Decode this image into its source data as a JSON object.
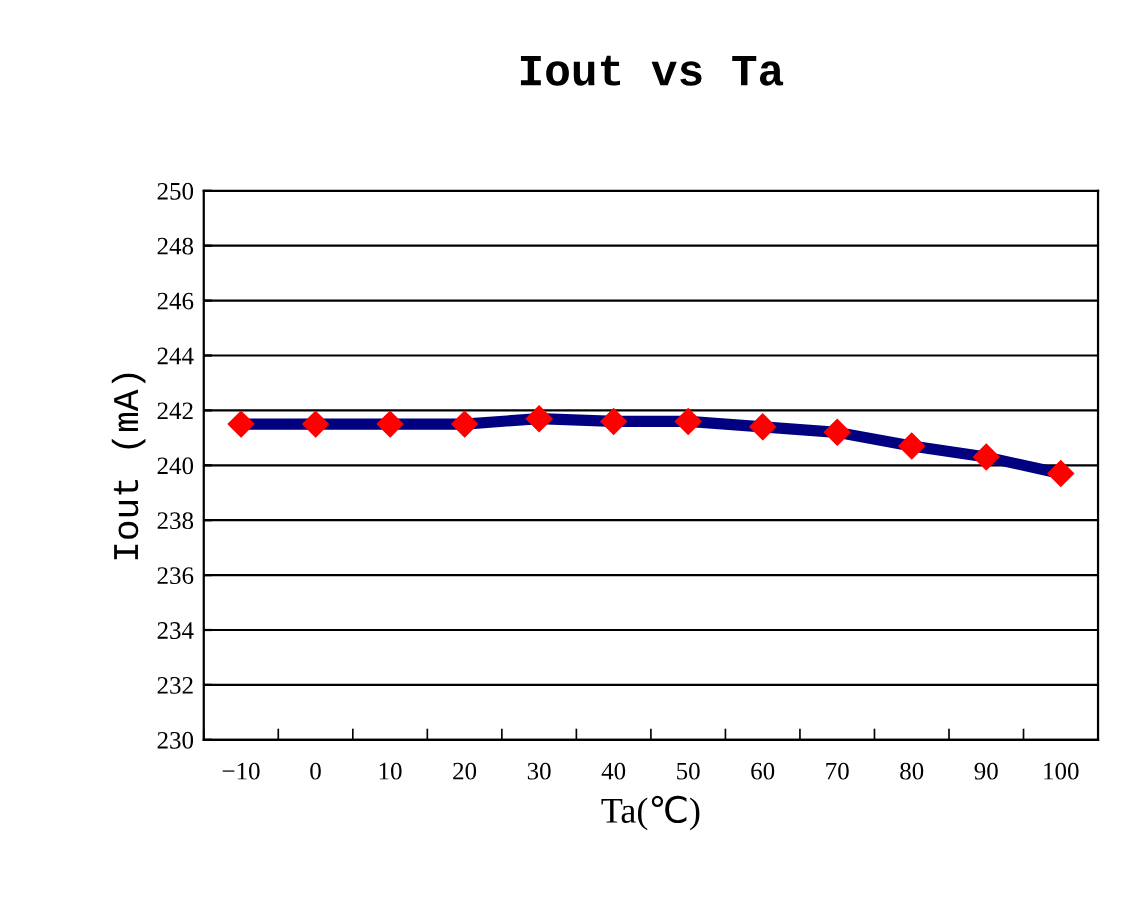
{
  "chart_data": {
    "type": "line",
    "title": "Iout vs Ta",
    "xlabel": "Ta(℃)",
    "ylabel": "Iout (mA)",
    "categories": [
      "−10",
      "0",
      "10",
      "20",
      "30",
      "40",
      "50",
      "60",
      "70",
      "80",
      "90",
      "100"
    ],
    "series": [
      {
        "color": "#000080",
        "values": [
          241.5,
          241.5,
          241.5,
          241.5,
          241.7,
          241.6,
          241.6,
          241.4,
          241.2,
          240.7,
          240.3,
          239.7
        ]
      }
    ],
    "ylim": [
      230,
      250
    ],
    "yticks": [
      230,
      232,
      234,
      236,
      238,
      240,
      242,
      244,
      246,
      248,
      250
    ],
    "grid": "y",
    "marker": "diamond",
    "line_style": "solid",
    "legend": false
  }
}
